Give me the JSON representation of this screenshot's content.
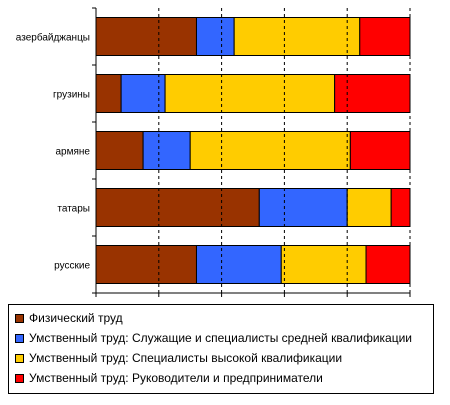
{
  "chart_data": {
    "type": "bar",
    "orientation": "horizontal",
    "stacked": true,
    "normalized": true,
    "categories": [
      "азербайджанцы",
      "грузины",
      "армяне",
      "татары",
      "русские"
    ],
    "series": [
      {
        "name": "Физический труд",
        "color": "#993300",
        "values": [
          32,
          8,
          15,
          52,
          32
        ]
      },
      {
        "name": "Умственный труд: Служащие и специалисты средней квалификации",
        "color": "#3366ff",
        "values": [
          12,
          14,
          15,
          28,
          27
        ]
      },
      {
        "name": "Умственный труд: Специалисты высокой квалификации",
        "color": "#ffcc00",
        "values": [
          40,
          54,
          51,
          14,
          27
        ]
      },
      {
        "name": "Умственный труд: Руководители и предприниматели",
        "color": "#ff0000",
        "values": [
          16,
          24,
          19,
          6,
          14
        ]
      }
    ],
    "xticks": [
      "0%",
      "20%",
      "40%",
      "60%",
      "80%",
      "100%"
    ],
    "xlim": [
      0,
      100
    ],
    "grid": "vertical dashed",
    "legend_position": "bottom"
  }
}
